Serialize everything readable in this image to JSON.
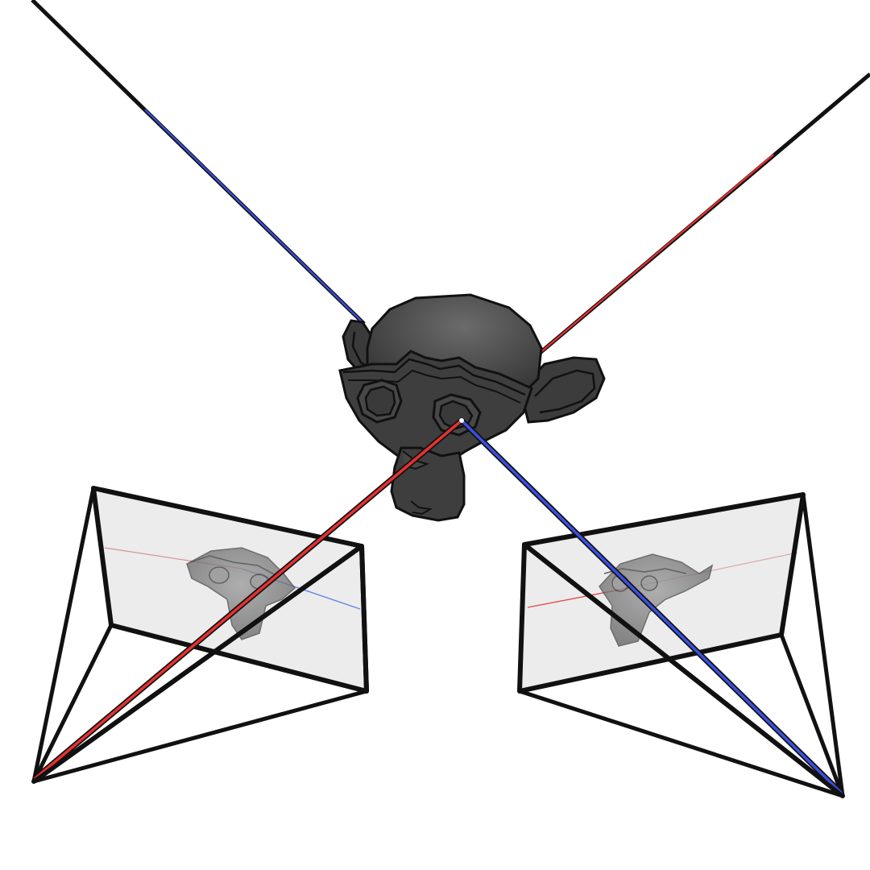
{
  "diagram": {
    "subject": "monkey-head",
    "elements": [
      "camera-frustum-left",
      "camera-frustum-right",
      "monkey-head-model",
      "ray-red",
      "ray-blue",
      "image-plane-left",
      "image-plane-right"
    ]
  },
  "colors": {
    "background": "#ffffff",
    "frame": "#111111",
    "image_plane": "#ececec",
    "ray_red": "#e83030",
    "ray_blue": "#3a50e0",
    "monkey_dark": "#3a3a3a",
    "monkey_mid": "#555555",
    "monkey_light": "#6a6a6a"
  }
}
